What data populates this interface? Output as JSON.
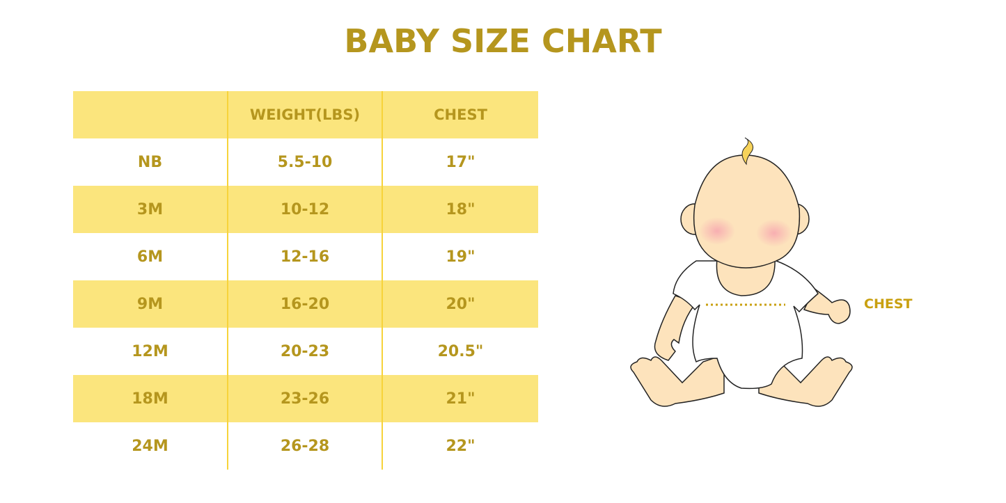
{
  "title": "BABY SIZE CHART",
  "table": {
    "headers": [
      "",
      "WEIGHT(LBS)",
      "CHEST"
    ],
    "rows": [
      [
        "NB",
        "5.5-10",
        "17\""
      ],
      [
        "3M",
        "10-12",
        "18\""
      ],
      [
        "6M",
        "12-16",
        "19\""
      ],
      [
        "9M",
        "16-20",
        "20\""
      ],
      [
        "12M",
        "20-23",
        "20.5\""
      ],
      [
        "18M",
        "23-26",
        "21\""
      ],
      [
        "24M",
        "26-28",
        "22\""
      ]
    ]
  },
  "illustration": {
    "label": "CHEST",
    "icon": "baby-illustration"
  },
  "colors": {
    "text": "#B5961E",
    "band": "#FBE57D",
    "divider": "#F7D33A"
  }
}
